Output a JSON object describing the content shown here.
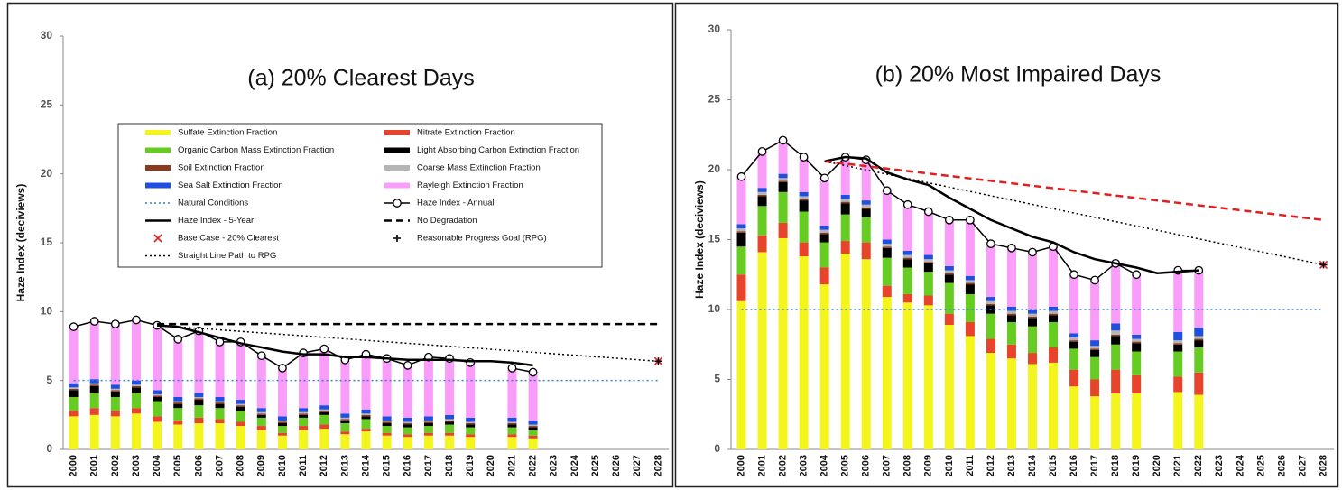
{
  "chart_data": [
    {
      "type": "bar",
      "title": "(a) 20% Clearest Days",
      "y_label": "Haze Index (deciviews)",
      "categories": [
        "2000",
        "2001",
        "2002",
        "2003",
        "2004",
        "2005",
        "2006",
        "2007",
        "2008",
        "2009",
        "2010",
        "2011",
        "2012",
        "2013",
        "2014",
        "2015",
        "2016",
        "2017",
        "2018",
        "2019",
        "2020",
        "2021",
        "2022",
        "2023",
        "2024",
        "2025",
        "2026",
        "2027",
        "2028"
      ],
      "ylim": [
        0,
        30
      ],
      "yticks": [
        0,
        5,
        10,
        15,
        20,
        25,
        30
      ],
      "legend": "upper center",
      "series": [
        {
          "name": "Sulfate Extinction Fraction",
          "kind": "bar",
          "color": "#f5f51e",
          "values": [
            2.4,
            2.5,
            2.4,
            2.6,
            2.0,
            1.8,
            1.9,
            1.9,
            1.7,
            1.4,
            1.0,
            1.4,
            1.5,
            1.1,
            1.3,
            1.0,
            0.9,
            1.0,
            1.0,
            0.9,
            null,
            0.9,
            0.8,
            null,
            null,
            null,
            null,
            null,
            null
          ]
        },
        {
          "name": "Nitrate Extinction Fraction",
          "kind": "bar",
          "color": "#e8432b",
          "values": [
            0.4,
            0.5,
            0.4,
            0.4,
            0.4,
            0.3,
            0.4,
            0.3,
            0.3,
            0.3,
            0.2,
            0.3,
            0.3,
            0.2,
            0.2,
            0.2,
            0.2,
            0.2,
            0.2,
            0.2,
            null,
            0.2,
            0.2,
            null,
            null,
            null,
            null,
            null,
            null
          ]
        },
        {
          "name": "Organic Carbon Mass Extinction Fraction",
          "kind": "bar",
          "color": "#66cc22",
          "values": [
            1.0,
            1.1,
            1.0,
            1.1,
            1.1,
            0.9,
            0.9,
            0.8,
            0.8,
            0.6,
            0.5,
            0.6,
            0.7,
            0.6,
            0.7,
            0.5,
            0.5,
            0.5,
            0.6,
            0.5,
            null,
            0.5,
            0.4,
            null,
            null,
            null,
            null,
            null,
            null
          ]
        },
        {
          "name": "Light Absorbing Carbon Extinction Fraction",
          "kind": "bar",
          "color": "#000000",
          "values": [
            0.5,
            0.5,
            0.4,
            0.4,
            0.3,
            0.3,
            0.4,
            0.3,
            0.3,
            0.2,
            0.2,
            0.2,
            0.2,
            0.2,
            0.2,
            0.2,
            0.2,
            0.2,
            0.2,
            0.2,
            null,
            0.2,
            0.2,
            null,
            null,
            null,
            null,
            null,
            null
          ]
        },
        {
          "name": "Soil Extinction Fraction",
          "kind": "bar",
          "color": "#8b3a1e",
          "values": [
            0.1,
            0.1,
            0.1,
            0.1,
            0.1,
            0.1,
            0.1,
            0.1,
            0.1,
            0.1,
            0.1,
            0.1,
            0.1,
            0.1,
            0.1,
            0.1,
            0.1,
            0.1,
            0.1,
            0.1,
            null,
            0.1,
            0.1,
            null,
            null,
            null,
            null,
            null,
            null
          ]
        },
        {
          "name": "Coarse Mass Extinction Fraction",
          "kind": "bar",
          "color": "#b5b5b5",
          "values": [
            0.1,
            0.1,
            0.1,
            0.1,
            0.1,
            0.1,
            0.1,
            0.1,
            0.1,
            0.1,
            0.1,
            0.1,
            0.1,
            0.1,
            0.1,
            0.1,
            0.1,
            0.1,
            0.1,
            0.1,
            null,
            0.1,
            0.1,
            null,
            null,
            null,
            null,
            null,
            null
          ]
        },
        {
          "name": "Sea Salt Extinction Fraction",
          "kind": "bar",
          "color": "#1f4fe0",
          "values": [
            0.3,
            0.3,
            0.3,
            0.3,
            0.3,
            0.3,
            0.3,
            0.3,
            0.3,
            0.3,
            0.3,
            0.3,
            0.3,
            0.3,
            0.3,
            0.3,
            0.3,
            0.3,
            0.3,
            0.3,
            null,
            0.3,
            0.3,
            null,
            null,
            null,
            null,
            null,
            null
          ]
        },
        {
          "name": "Rayleigh Extinction Fraction",
          "kind": "bar",
          "color": "#fa9cfa",
          "values": [
            4.1,
            4.2,
            4.4,
            4.4,
            4.7,
            4.2,
            4.5,
            4.0,
            4.2,
            3.8,
            3.5,
            4.0,
            4.1,
            3.9,
            4.0,
            4.2,
            3.8,
            4.3,
            4.1,
            4.0,
            null,
            3.6,
            3.5,
            null,
            null,
            null,
            null,
            null,
            null
          ]
        },
        {
          "name": "Natural Conditions",
          "kind": "line",
          "dash": "dotted",
          "color": "#3a7bd5",
          "x": [
            "2000",
            "2028"
          ],
          "values": [
            5.0,
            5.0
          ]
        },
        {
          "name": "Haze Index - Annual",
          "kind": "line",
          "dash": "solid",
          "marker": "circle",
          "color": "#000000",
          "x": [
            "2000",
            "2001",
            "2002",
            "2003",
            "2004",
            "2005",
            "2006",
            "2007",
            "2008",
            "2009",
            "2010",
            "2011",
            "2012",
            "2013",
            "2014",
            "2015",
            "2016",
            "2017",
            "2018",
            "2019",
            "2020",
            "2021",
            "2022"
          ],
          "values": [
            8.9,
            9.3,
            9.1,
            9.4,
            9.0,
            8.0,
            8.6,
            7.8,
            7.8,
            6.8,
            5.9,
            7.0,
            7.3,
            6.5,
            6.9,
            6.6,
            6.1,
            6.7,
            6.6,
            6.3,
            null,
            5.9,
            5.6
          ]
        },
        {
          "name": "Haze Index - 5-Year",
          "kind": "line",
          "dash": "solid",
          "width": 2.5,
          "color": "#000000",
          "x": [
            "2004",
            "2005",
            "2006",
            "2007",
            "2008",
            "2009",
            "2010",
            "2011",
            "2012",
            "2013",
            "2014",
            "2015",
            "2016",
            "2017",
            "2018",
            "2019",
            "2020",
            "2021",
            "2022"
          ],
          "values": [
            9.0,
            8.9,
            8.5,
            8.1,
            7.7,
            7.4,
            7.1,
            6.9,
            6.9,
            6.7,
            6.7,
            6.6,
            6.5,
            6.5,
            6.5,
            6.4,
            6.4,
            6.3,
            6.1
          ]
        },
        {
          "name": "No Degradation",
          "kind": "line",
          "dash": "dashed",
          "width": 2.5,
          "color": "#000000",
          "x": [
            "2004",
            "2028"
          ],
          "values": [
            9.1,
            9.1
          ]
        },
        {
          "name": "Base Case - 20% Clearest",
          "kind": "marker",
          "marker": "x",
          "color": "#e02020",
          "x": [
            "2028"
          ],
          "values": [
            6.4
          ]
        },
        {
          "name": "Reasonable Progress Goal (RPG)",
          "kind": "marker",
          "marker": "plus",
          "color": "#000000",
          "x": [
            "2028"
          ],
          "values": [
            6.4
          ]
        },
        {
          "name": "Straight Line Path to RPG",
          "kind": "line",
          "dash": "dotted",
          "color": "#000000",
          "x": [
            "2004",
            "2028"
          ],
          "values": [
            9.0,
            6.4
          ]
        }
      ]
    },
    {
      "type": "bar",
      "title": "(b) 20% Most Impaired Days",
      "y_label": "Haze Index (deciviews)",
      "categories": [
        "2000",
        "2001",
        "2002",
        "2003",
        "2004",
        "2005",
        "2006",
        "2007",
        "2008",
        "2009",
        "2010",
        "2011",
        "2012",
        "2013",
        "2014",
        "2015",
        "2016",
        "2017",
        "2018",
        "2019",
        "2020",
        "2021",
        "2022",
        "2023",
        "2024",
        "2025",
        "2026",
        "2027",
        "2028"
      ],
      "ylim": [
        0,
        30
      ],
      "yticks": [
        0,
        5,
        10,
        15,
        20,
        25,
        30
      ],
      "series": [
        {
          "kind": "bar",
          "color": "#f5f51e",
          "values": [
            10.6,
            14.1,
            15.1,
            13.8,
            11.8,
            14.0,
            13.6,
            10.9,
            10.5,
            10.3,
            8.9,
            8.1,
            6.9,
            6.5,
            6.1,
            6.2,
            4.5,
            3.8,
            4.0,
            4.0,
            null,
            4.1,
            3.9,
            null,
            null,
            null,
            null,
            null,
            null
          ]
        },
        {
          "kind": "bar",
          "color": "#e8432b",
          "values": [
            1.9,
            1.2,
            1.1,
            1.0,
            1.2,
            0.9,
            1.2,
            0.8,
            0.6,
            0.7,
            0.8,
            1.0,
            1.0,
            1.0,
            0.8,
            1.1,
            1.2,
            1.2,
            1.7,
            1.3,
            null,
            1.1,
            1.6,
            null,
            null,
            null,
            null,
            null,
            null
          ]
        },
        {
          "kind": "bar",
          "color": "#66cc22",
          "values": [
            2.0,
            2.1,
            2.2,
            2.2,
            1.8,
            1.9,
            1.8,
            2.0,
            1.9,
            1.7,
            2.2,
            2.0,
            1.8,
            1.6,
            1.9,
            1.8,
            1.5,
            1.6,
            1.8,
            1.7,
            null,
            1.8,
            1.8,
            null,
            null,
            null,
            null,
            null,
            null
          ]
        },
        {
          "kind": "bar",
          "color": "#000000",
          "values": [
            1.0,
            0.7,
            0.7,
            0.8,
            0.6,
            0.8,
            0.6,
            0.7,
            0.6,
            0.6,
            0.6,
            0.7,
            0.6,
            0.5,
            0.6,
            0.5,
            0.5,
            0.5,
            0.6,
            0.6,
            null,
            0.5,
            0.5,
            null,
            null,
            null,
            null,
            null,
            null
          ]
        },
        {
          "kind": "bar",
          "color": "#8b3a1e",
          "values": [
            0.1,
            0.1,
            0.1,
            0.1,
            0.1,
            0.1,
            0.1,
            0.1,
            0.1,
            0.1,
            0.1,
            0.1,
            0.1,
            0.1,
            0.1,
            0.1,
            0.1,
            0.1,
            0.1,
            0.1,
            null,
            0.1,
            0.1,
            null,
            null,
            null,
            null,
            null,
            null
          ]
        },
        {
          "kind": "bar",
          "color": "#b5b5b5",
          "values": [
            0.2,
            0.2,
            0.2,
            0.2,
            0.2,
            0.2,
            0.2,
            0.2,
            0.2,
            0.2,
            0.2,
            0.2,
            0.2,
            0.2,
            0.2,
            0.2,
            0.2,
            0.2,
            0.3,
            0.2,
            null,
            0.2,
            0.2,
            null,
            null,
            null,
            null,
            null,
            null
          ]
        },
        {
          "kind": "bar",
          "color": "#1f4fe0",
          "values": [
            0.3,
            0.3,
            0.3,
            0.3,
            0.3,
            0.3,
            0.3,
            0.3,
            0.3,
            0.3,
            0.3,
            0.3,
            0.3,
            0.3,
            0.3,
            0.3,
            0.3,
            0.4,
            0.5,
            0.3,
            null,
            0.6,
            0.6,
            null,
            null,
            null,
            null,
            null,
            null
          ]
        },
        {
          "kind": "bar",
          "color": "#fa9cfa",
          "values": [
            3.4,
            2.6,
            2.4,
            2.5,
            3.4,
            2.7,
            2.9,
            3.5,
            3.3,
            3.1,
            3.3,
            4.0,
            3.8,
            4.2,
            4.1,
            4.3,
            4.2,
            4.3,
            4.3,
            4.3,
            null,
            4.4,
            4.1,
            null,
            null,
            null,
            null,
            null,
            null
          ]
        },
        {
          "kind": "line",
          "dash": "dotted",
          "color": "#3a7bd5",
          "x": [
            "2000",
            "2028"
          ],
          "values": [
            10.0,
            10.0
          ]
        },
        {
          "kind": "line",
          "dash": "solid",
          "marker": "circle",
          "color": "#000000",
          "x": [
            "2000",
            "2001",
            "2002",
            "2003",
            "2004",
            "2005",
            "2006",
            "2007",
            "2008",
            "2009",
            "2010",
            "2011",
            "2012",
            "2013",
            "2014",
            "2015",
            "2016",
            "2017",
            "2018",
            "2019",
            "2020",
            "2021",
            "2022"
          ],
          "values": [
            19.5,
            21.3,
            22.1,
            20.9,
            19.4,
            20.9,
            20.7,
            18.5,
            17.5,
            17.0,
            16.4,
            16.4,
            14.7,
            14.4,
            14.1,
            14.5,
            12.5,
            12.1,
            13.3,
            12.5,
            null,
            12.8,
            12.8
          ]
        },
        {
          "kind": "line",
          "dash": "solid",
          "width": 2.5,
          "color": "#000000",
          "x": [
            "2004",
            "2005",
            "2006",
            "2007",
            "2008",
            "2009",
            "2010",
            "2011",
            "2012",
            "2013",
            "2014",
            "2015",
            "2016",
            "2017",
            "2018",
            "2019",
            "2020",
            "2021",
            "2022"
          ],
          "values": [
            20.6,
            20.9,
            20.8,
            19.8,
            19.3,
            18.9,
            18.0,
            17.2,
            16.4,
            15.8,
            15.2,
            14.8,
            14.1,
            13.6,
            13.3,
            13.0,
            12.6,
            12.7,
            12.8
          ]
        },
        {
          "kind": "line",
          "dash": "dashed",
          "width": 2.5,
          "color": "#e02020",
          "x": [
            "2004",
            "2028"
          ],
          "values": [
            20.6,
            16.4
          ]
        },
        {
          "kind": "marker",
          "marker": "x",
          "color": "#e02020",
          "x": [
            "2028"
          ],
          "values": [
            13.2
          ]
        },
        {
          "kind": "marker",
          "marker": "plus",
          "color": "#000000",
          "x": [
            "2028"
          ],
          "values": [
            13.2
          ]
        },
        {
          "kind": "line",
          "dash": "dotted",
          "color": "#000000",
          "x": [
            "2004",
            "2028"
          ],
          "values": [
            20.6,
            13.2
          ]
        }
      ]
    }
  ]
}
